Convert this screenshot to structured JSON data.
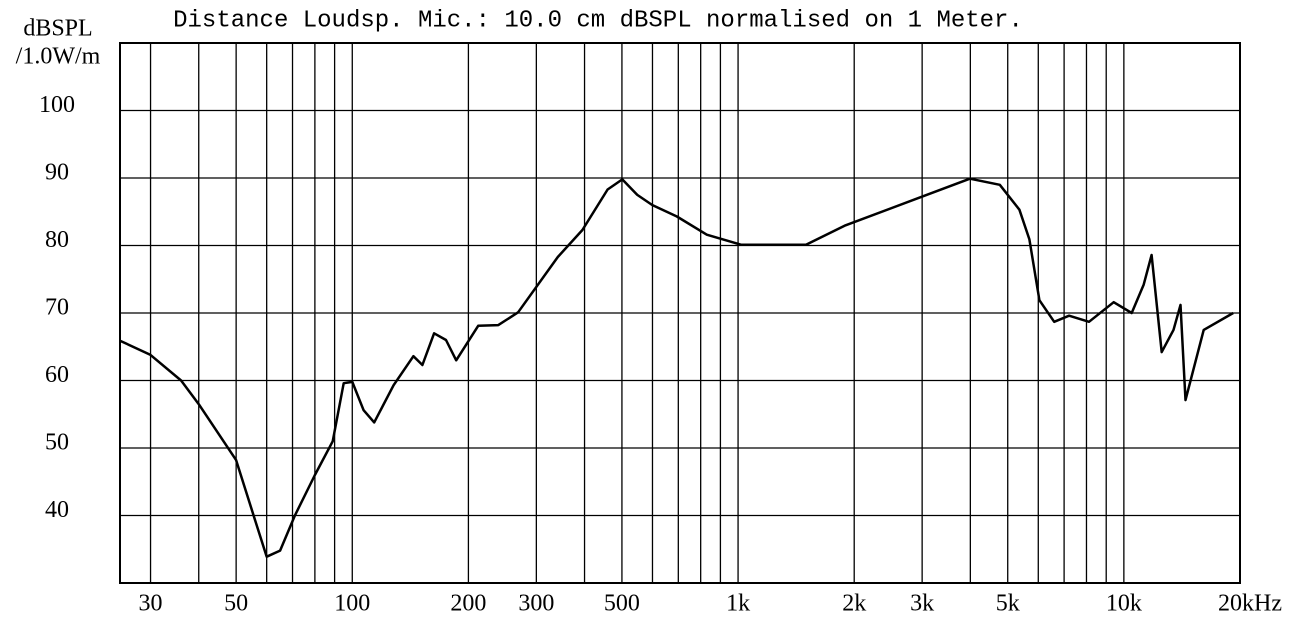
{
  "chart_data": {
    "type": "line",
    "title": "Distance Loudsp. Mic.: 10.0 cm dBSPL normalised on 1 Meter.",
    "ylabel": [
      "dBSPL",
      "/1.0W/m"
    ],
    "x": [
      25,
      30,
      36,
      40,
      50,
      56,
      60,
      65,
      71,
      80,
      89,
      95,
      100,
      107,
      114,
      128,
      144,
      152,
      163,
      175,
      186,
      212,
      239,
      269,
      341,
      395,
      459,
      501,
      548,
      599,
      694,
      830,
      1020,
      1500,
      1900,
      3050,
      3990,
      4770,
      5360,
      5690,
      6040,
      6600,
      7210,
      8120,
      9410,
      10480,
      11260,
      11800,
      12530,
      13450,
      14020,
      14450,
      16100,
      19200
    ],
    "values": [
      65.9,
      63.8,
      60,
      56.5,
      48.2,
      39.3,
      33.9,
      34.8,
      40,
      46,
      51,
      59.6,
      59.8,
      55.6,
      53.8,
      59.3,
      63.6,
      62.3,
      67,
      66,
      63,
      68.1,
      68.2,
      70.1,
      78.3,
      82.3,
      88.3,
      89.8,
      87.5,
      86,
      84.3,
      81.6,
      80.1,
      80.1,
      83,
      87.4,
      89.9,
      89,
      85.3,
      80.9,
      71.9,
      68.7,
      69.6,
      68.7,
      71.6,
      70,
      74.2,
      78.6,
      64.2,
      67.5,
      71.2,
      57.1,
      67.5,
      70
    ],
    "color": "#000000",
    "xlim": [
      25,
      20000
    ],
    "xlog": true,
    "xticks": [
      30,
      50,
      100,
      200,
      300,
      500,
      {
        "value": 1000,
        "label": "1k"
      },
      {
        "value": 2000,
        "label": "2k"
      },
      {
        "value": 3000,
        "label": "3k"
      },
      {
        "value": 5000,
        "label": "5k"
      },
      {
        "value": 10000,
        "label": "10k"
      },
      {
        "value": 20000,
        "label": "20kHz"
      }
    ],
    "xgrid": [
      40,
      60,
      70,
      80,
      90,
      400,
      600,
      700,
      800,
      900,
      4000,
      6000,
      7000,
      8000,
      9000
    ],
    "ylim": [
      30,
      110
    ],
    "yticks": [
      40,
      50,
      60,
      70,
      80,
      90,
      100
    ],
    "grid": true
  }
}
